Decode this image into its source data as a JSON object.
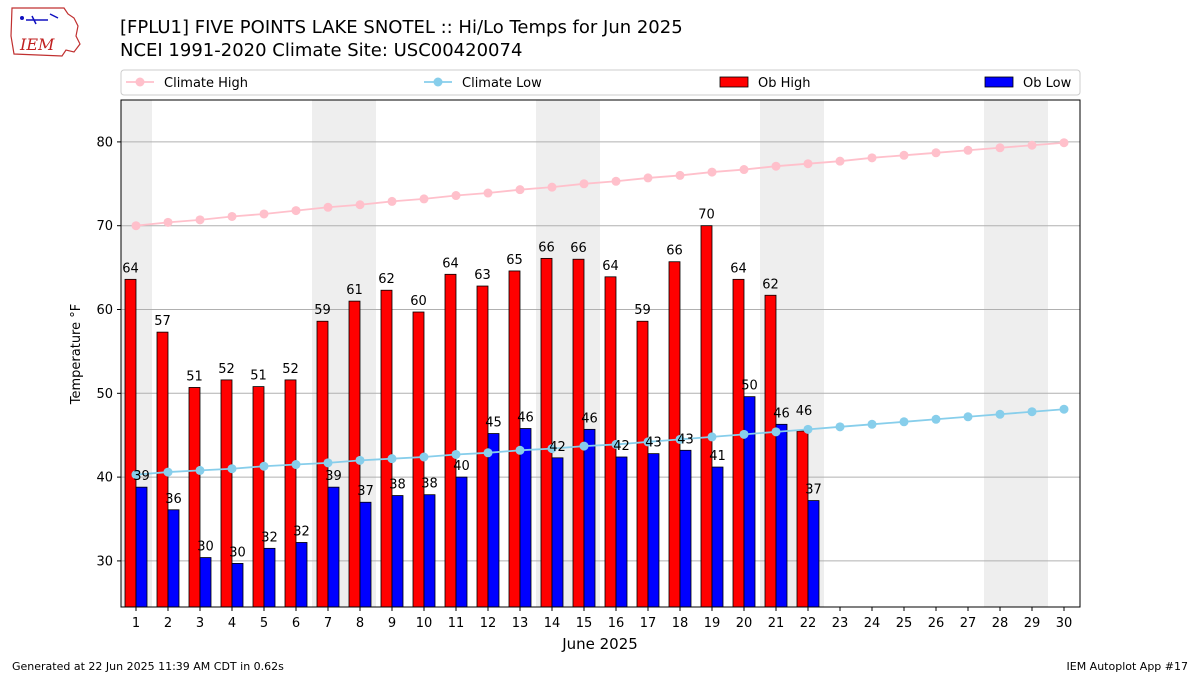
{
  "header": {
    "title_line1": "[FPLU1] FIVE POINTS LAKE SNOTEL :: Hi/Lo Temps for Jun 2025",
    "title_line2": "NCEI 1991-2020 Climate Site: USC00420074",
    "logo_text": "IEM"
  },
  "footer": {
    "left": "Generated at 22 Jun 2025 11:39 AM CDT in 0.62s",
    "right": "IEM Autoplot App #17"
  },
  "colors": {
    "climate_high": "#ffc0cb",
    "climate_low": "#87ceeb",
    "ob_high": "#ff0000",
    "ob_low": "#0000ff",
    "weekend_shade": "#eeeeee",
    "grid": "#b0b0b0"
  },
  "chart_data": {
    "type": "bar",
    "xlabel": "June 2025",
    "ylabel": "Temperature °F",
    "ylim": [
      24.5,
      85
    ],
    "yticks": [
      30,
      40,
      50,
      60,
      70,
      80
    ],
    "grid": "horizontal",
    "legend_placement": "top, above plot",
    "days": [
      1,
      2,
      3,
      4,
      5,
      6,
      7,
      8,
      9,
      10,
      11,
      12,
      13,
      14,
      15,
      16,
      17,
      18,
      19,
      20,
      21,
      22,
      23,
      24,
      25,
      26,
      27,
      28,
      29,
      30
    ],
    "shaded_ranges": [
      [
        1,
        1
      ],
      [
        7,
        8
      ],
      [
        14,
        15
      ],
      [
        21,
        22
      ],
      [
        28,
        29
      ]
    ],
    "series": [
      {
        "name": "Climate High",
        "kind": "line",
        "values": [
          70.0,
          70.4,
          70.7,
          71.1,
          71.4,
          71.8,
          72.2,
          72.5,
          72.9,
          73.2,
          73.6,
          73.9,
          74.3,
          74.6,
          75.0,
          75.3,
          75.7,
          76.0,
          76.4,
          76.7,
          77.1,
          77.4,
          77.7,
          78.1,
          78.4,
          78.7,
          79.0,
          79.3,
          79.6,
          79.9
        ]
      },
      {
        "name": "Climate Low",
        "kind": "line",
        "values": [
          40.3,
          40.6,
          40.8,
          41.0,
          41.3,
          41.5,
          41.7,
          42.0,
          42.2,
          42.4,
          42.7,
          42.9,
          43.2,
          43.4,
          43.7,
          43.9,
          44.2,
          44.5,
          44.8,
          45.1,
          45.4,
          45.7,
          46.0,
          46.3,
          46.6,
          46.9,
          47.2,
          47.5,
          47.8,
          48.1
        ]
      },
      {
        "name": "Ob High",
        "kind": "bar",
        "values": [
          63.6,
          57.3,
          50.7,
          51.6,
          50.8,
          51.6,
          58.6,
          61.0,
          62.3,
          59.7,
          64.2,
          62.8,
          64.6,
          66.1,
          66.0,
          63.9,
          58.6,
          65.7,
          70.0,
          63.6,
          61.7,
          45.5
        ],
        "labels": [
          "64",
          "57",
          "51",
          "52",
          "51",
          "52",
          "59",
          "61",
          "62",
          "60",
          "64",
          "63",
          "65",
          "66",
          "66",
          "64",
          "59",
          "66",
          "70",
          "64",
          "62",
          ""
        ]
      },
      {
        "name": "Ob Low",
        "kind": "bar",
        "values": [
          38.8,
          36.1,
          30.4,
          29.7,
          31.5,
          32.2,
          38.8,
          37.0,
          37.8,
          37.9,
          40.0,
          45.2,
          45.8,
          42.3,
          45.7,
          42.4,
          42.8,
          43.2,
          41.2,
          49.6,
          46.3,
          37.2
        ],
        "labels": [
          "39",
          "36",
          "30",
          "30",
          "32",
          "32",
          "39",
          "37",
          "38",
          "38",
          "40",
          "45",
          "46",
          "42",
          "46",
          "42",
          "43",
          "43",
          "41",
          "50",
          "46",
          "37"
        ]
      }
    ],
    "extra_labels": [
      {
        "day": 22,
        "text": "46"
      }
    ]
  }
}
